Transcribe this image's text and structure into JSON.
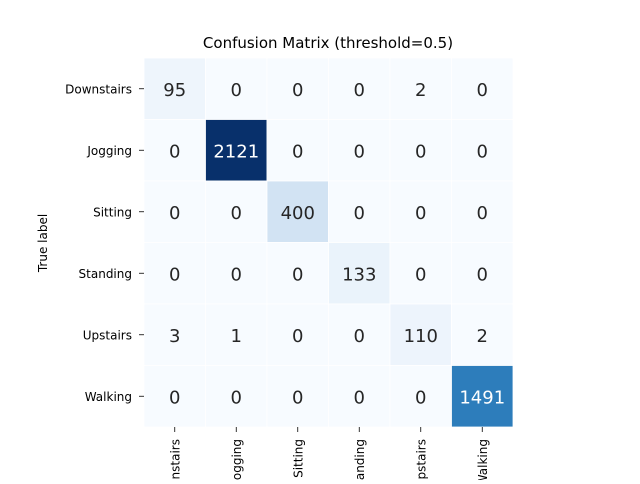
{
  "chart_data": {
    "type": "heatmap",
    "title": "Confusion Matrix (threshold=0.5)",
    "ylabel": "True label",
    "xlabel": "",
    "row_labels": [
      "Downstairs",
      "Jogging",
      "Sitting",
      "Standing",
      "Upstairs",
      "Walking"
    ],
    "col_labels": [
      "Downstairs",
      "Jogging",
      "Sitting",
      "Standing",
      "Upstairs",
      "Walking"
    ],
    "values": [
      [
        95,
        0,
        0,
        0,
        2,
        0
      ],
      [
        0,
        2121,
        0,
        0,
        0,
        0
      ],
      [
        0,
        0,
        400,
        0,
        0,
        0
      ],
      [
        0,
        0,
        0,
        133,
        0,
        0
      ],
      [
        3,
        1,
        0,
        0,
        110,
        2
      ],
      [
        0,
        0,
        0,
        0,
        0,
        1491
      ]
    ],
    "colormap": "Blues",
    "vmin": 0,
    "vmax": 2121,
    "colorbar": false
  }
}
